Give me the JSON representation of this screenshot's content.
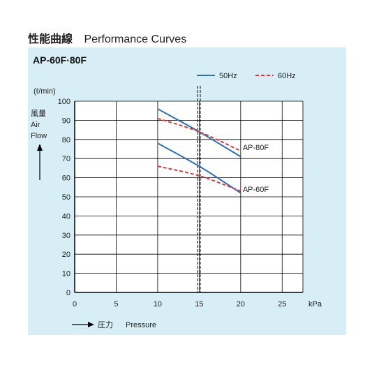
{
  "header": {
    "title_jp": "性能曲線",
    "title_en": "Performance Curves"
  },
  "panel": {
    "title": "AP-60F·80F",
    "background": "#d8eef6"
  },
  "chart_data": {
    "type": "line",
    "x_unit": "kPa",
    "x_label_arrow": "⟶",
    "x_label_jp": "圧力",
    "x_label_en": "Pressure",
    "y_unit": "(ℓ/min)",
    "y_label_jp": "風量",
    "y_label_en_1": "Air",
    "y_label_en_2": "Flow",
    "xlim": [
      0,
      27.5
    ],
    "ylim": [
      0,
      100
    ],
    "x_ticks": [
      "0",
      "5",
      "10",
      "15",
      "20",
      "25"
    ],
    "y_ticks": [
      "0",
      "10",
      "20",
      "30",
      "40",
      "50",
      "60",
      "70",
      "80",
      "90",
      "100"
    ],
    "reference_line_x": 14.8,
    "grid": true,
    "legend": [
      {
        "label": "50Hz",
        "style": "solid",
        "color": "#2e6fb5"
      },
      {
        "label": "60Hz",
        "style": "dashed",
        "color": "#e0393a"
      }
    ],
    "series": [
      {
        "model": "AP-80F",
        "hz": "50Hz",
        "color": "#2e6fb5",
        "dashed": false,
        "points": [
          [
            10,
            96
          ],
          [
            15,
            84
          ],
          [
            20,
            71
          ]
        ]
      },
      {
        "model": "AP-80F",
        "hz": "60Hz",
        "color": "#e0393a",
        "dashed": true,
        "points": [
          [
            10,
            91
          ],
          [
            15,
            84
          ],
          [
            20,
            74
          ]
        ]
      },
      {
        "model": "AP-60F",
        "hz": "50Hz",
        "color": "#2e6fb5",
        "dashed": false,
        "points": [
          [
            10,
            78
          ],
          [
            15,
            66
          ],
          [
            20,
            52
          ]
        ]
      },
      {
        "model": "AP-60F",
        "hz": "60Hz",
        "color": "#e0393a",
        "dashed": true,
        "points": [
          [
            10,
            66
          ],
          [
            15,
            61
          ],
          [
            20,
            53
          ]
        ]
      }
    ],
    "curve_labels": [
      "AP-80F",
      "AP-60F"
    ]
  }
}
